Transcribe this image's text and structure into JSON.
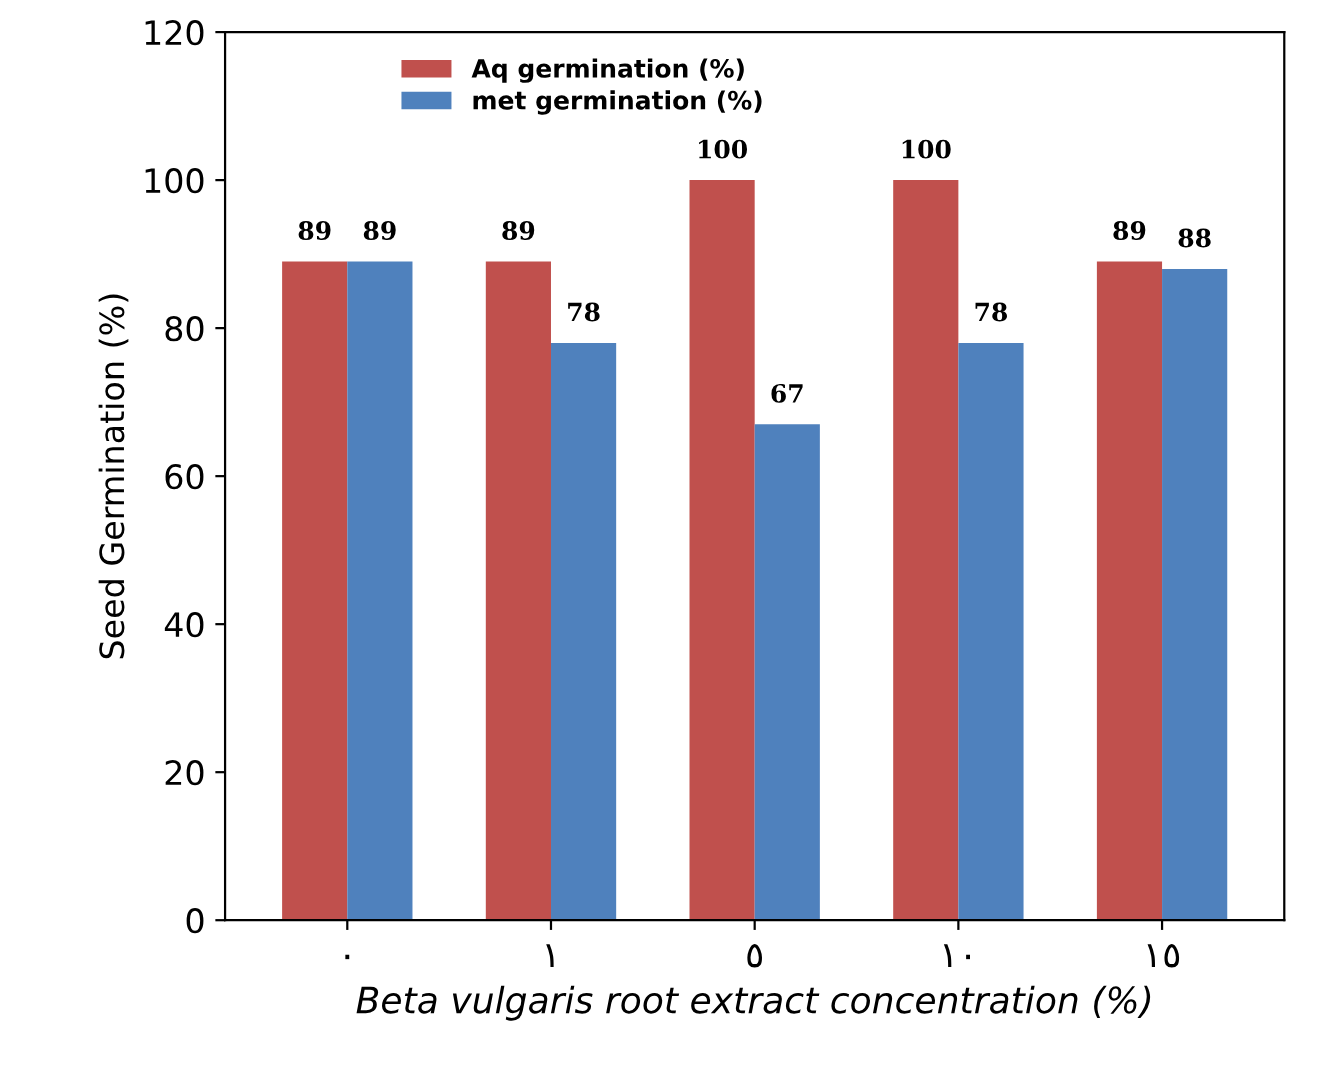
{
  "chart_data": {
    "type": "bar",
    "categories": [
      "٠",
      "١",
      "٥",
      "١٠",
      "١٥"
    ],
    "series": [
      {
        "name": "Aq germination (%)",
        "color": "#c0504d",
        "values": [
          89,
          89,
          100,
          100,
          89
        ]
      },
      {
        "name": "met germination (%)",
        "color": "#4f81bd",
        "values": [
          89,
          78,
          67,
          78,
          88
        ]
      }
    ],
    "ylabel": "Seed Germination (%)",
    "xlabel": "Beta vulgaris root extract concentration (%)",
    "ylim": [
      0,
      120
    ],
    "yticks": [
      0,
      20,
      40,
      60,
      80,
      100,
      120
    ],
    "data_labels": true,
    "legend": "top left",
    "grid": false
  }
}
